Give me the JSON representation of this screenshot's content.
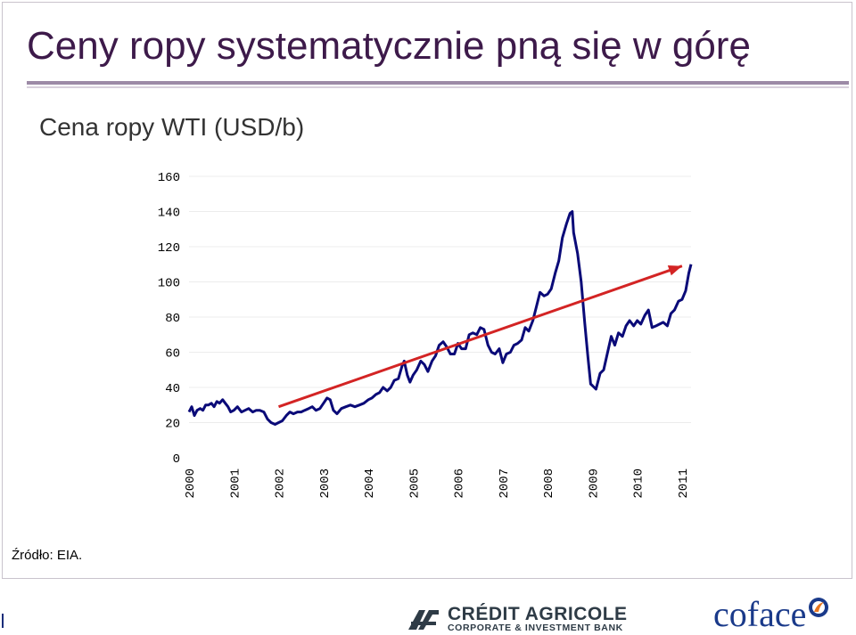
{
  "slide": {
    "title": "Ceny ropy systematycznie pną się w górę",
    "source": "Źródło: EIA."
  },
  "chart_data": {
    "type": "line",
    "title": "Cena ropy WTI (USD/b)",
    "xlabel": "",
    "ylabel": "",
    "ylim": [
      0,
      160
    ],
    "xlim": [
      2000,
      2011.2
    ],
    "grid": true,
    "legend": "none",
    "y_ticks": [
      160,
      140,
      120,
      100,
      80,
      60,
      40,
      20,
      0
    ],
    "x_ticks": [
      "2000",
      "2001",
      "2002",
      "2003",
      "2004",
      "2005",
      "2006",
      "2007",
      "2008",
      "2009",
      "2010",
      "2011"
    ],
    "series": [
      {
        "name": "WTI",
        "color": "#0a0a78",
        "points": [
          [
            2000.0,
            26
          ],
          [
            2000.06,
            29
          ],
          [
            2000.12,
            24
          ],
          [
            2000.18,
            27
          ],
          [
            2000.25,
            28
          ],
          [
            2000.31,
            27
          ],
          [
            2000.37,
            30
          ],
          [
            2000.43,
            30
          ],
          [
            2000.5,
            31
          ],
          [
            2000.56,
            29
          ],
          [
            2000.62,
            32
          ],
          [
            2000.68,
            31
          ],
          [
            2000.75,
            33
          ],
          [
            2000.81,
            31
          ],
          [
            2000.87,
            29
          ],
          [
            2000.93,
            26
          ],
          [
            2001.0,
            27
          ],
          [
            2001.08,
            29
          ],
          [
            2001.17,
            26
          ],
          [
            2001.25,
            27
          ],
          [
            2001.33,
            28
          ],
          [
            2001.42,
            26
          ],
          [
            2001.5,
            27
          ],
          [
            2001.58,
            27
          ],
          [
            2001.67,
            26
          ],
          [
            2001.75,
            22
          ],
          [
            2001.83,
            20
          ],
          [
            2001.92,
            19
          ],
          [
            2002.0,
            20
          ],
          [
            2002.08,
            21
          ],
          [
            2002.17,
            24
          ],
          [
            2002.25,
            26
          ],
          [
            2002.33,
            25
          ],
          [
            2002.42,
            26
          ],
          [
            2002.5,
            26
          ],
          [
            2002.58,
            27
          ],
          [
            2002.67,
            28
          ],
          [
            2002.75,
            29
          ],
          [
            2002.83,
            27
          ],
          [
            2002.92,
            28
          ],
          [
            2003.0,
            31
          ],
          [
            2003.08,
            34
          ],
          [
            2003.15,
            33
          ],
          [
            2003.22,
            27
          ],
          [
            2003.3,
            25
          ],
          [
            2003.4,
            28
          ],
          [
            2003.5,
            29
          ],
          [
            2003.6,
            30
          ],
          [
            2003.7,
            29
          ],
          [
            2003.8,
            30
          ],
          [
            2003.9,
            31
          ],
          [
            2004.0,
            33
          ],
          [
            2004.08,
            34
          ],
          [
            2004.17,
            36
          ],
          [
            2004.25,
            37
          ],
          [
            2004.33,
            40
          ],
          [
            2004.42,
            38
          ],
          [
            2004.5,
            40
          ],
          [
            2004.58,
            44
          ],
          [
            2004.67,
            45
          ],
          [
            2004.75,
            52
          ],
          [
            2004.8,
            55
          ],
          [
            2004.87,
            47
          ],
          [
            2004.93,
            43
          ],
          [
            2005.0,
            47
          ],
          [
            2005.08,
            50
          ],
          [
            2005.17,
            55
          ],
          [
            2005.25,
            53
          ],
          [
            2005.33,
            49
          ],
          [
            2005.42,
            55
          ],
          [
            2005.5,
            58
          ],
          [
            2005.58,
            64
          ],
          [
            2005.67,
            66
          ],
          [
            2005.75,
            63
          ],
          [
            2005.83,
            59
          ],
          [
            2005.92,
            59
          ],
          [
            2006.0,
            65
          ],
          [
            2006.08,
            62
          ],
          [
            2006.17,
            62
          ],
          [
            2006.25,
            70
          ],
          [
            2006.33,
            71
          ],
          [
            2006.42,
            70
          ],
          [
            2006.5,
            74
          ],
          [
            2006.58,
            73
          ],
          [
            2006.67,
            64
          ],
          [
            2006.75,
            60
          ],
          [
            2006.83,
            59
          ],
          [
            2006.92,
            62
          ],
          [
            2007.0,
            54
          ],
          [
            2007.08,
            59
          ],
          [
            2007.17,
            60
          ],
          [
            2007.25,
            64
          ],
          [
            2007.33,
            65
          ],
          [
            2007.42,
            67
          ],
          [
            2007.5,
            74
          ],
          [
            2007.58,
            72
          ],
          [
            2007.67,
            78
          ],
          [
            2007.75,
            86
          ],
          [
            2007.83,
            94
          ],
          [
            2007.92,
            92
          ],
          [
            2008.0,
            93
          ],
          [
            2008.08,
            96
          ],
          [
            2008.17,
            105
          ],
          [
            2008.25,
            112
          ],
          [
            2008.33,
            125
          ],
          [
            2008.42,
            133
          ],
          [
            2008.5,
            139
          ],
          [
            2008.55,
            140
          ],
          [
            2008.58,
            128
          ],
          [
            2008.67,
            116
          ],
          [
            2008.75,
            100
          ],
          [
            2008.83,
            76
          ],
          [
            2008.9,
            57
          ],
          [
            2008.96,
            42
          ],
          [
            2009.0,
            41
          ],
          [
            2009.08,
            39
          ],
          [
            2009.17,
            48
          ],
          [
            2009.25,
            50
          ],
          [
            2009.33,
            59
          ],
          [
            2009.42,
            69
          ],
          [
            2009.5,
            64
          ],
          [
            2009.58,
            71
          ],
          [
            2009.67,
            69
          ],
          [
            2009.75,
            75
          ],
          [
            2009.83,
            78
          ],
          [
            2009.92,
            75
          ],
          [
            2010.0,
            78
          ],
          [
            2010.08,
            76
          ],
          [
            2010.17,
            81
          ],
          [
            2010.25,
            84
          ],
          [
            2010.33,
            74
          ],
          [
            2010.42,
            75
          ],
          [
            2010.5,
            76
          ],
          [
            2010.58,
            77
          ],
          [
            2010.67,
            75
          ],
          [
            2010.75,
            82
          ],
          [
            2010.83,
            84
          ],
          [
            2010.92,
            89
          ],
          [
            2011.0,
            90
          ],
          [
            2011.08,
            95
          ],
          [
            2011.15,
            105
          ],
          [
            2011.2,
            110
          ]
        ]
      },
      {
        "name": "Trend",
        "color": "#d32424",
        "points": [
          [
            2002.0,
            29
          ],
          [
            2011.0,
            109
          ]
        ]
      }
    ]
  },
  "logos": {
    "bank_name": "CRÉDIT AGRICOLE",
    "bank_sub": "CORPORATE & INVESTMENT BANK",
    "insurer": "coface"
  }
}
